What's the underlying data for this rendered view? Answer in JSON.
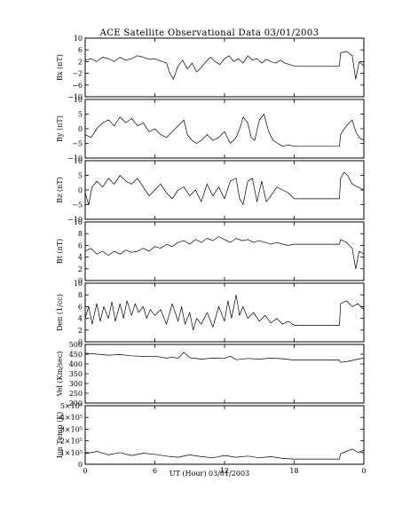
{
  "chart_data": {
    "type": "line",
    "title": "ACE Satellite Observational Data   03/01/2003",
    "xlabel": "UT (Hour)   03/01/2003",
    "x_ticks": [
      "0",
      "6",
      "12",
      "18",
      "0"
    ],
    "x_range_hours": [
      0,
      24
    ],
    "grid": false,
    "data_gap_hours": [
      18.0,
      21.9
    ],
    "panels": [
      {
        "name": "Bx",
        "ylabel": "Bx (nT)",
        "ylim": [
          -10,
          10
        ],
        "yticks": [
          "10",
          "6",
          "2",
          "−2",
          "−6",
          "−10"
        ],
        "ytick_values": [
          10,
          6,
          2,
          -2,
          -6,
          -10
        ],
        "points": [
          [
            0,
            2.5
          ],
          [
            0.5,
            3
          ],
          [
            1,
            2
          ],
          [
            1.5,
            3.5
          ],
          [
            2,
            3
          ],
          [
            2.5,
            2
          ],
          [
            3,
            3.5
          ],
          [
            3.5,
            2.5
          ],
          [
            4,
            3
          ],
          [
            4.5,
            4
          ],
          [
            5,
            3.5
          ],
          [
            5.5,
            2.8
          ],
          [
            6,
            3
          ],
          [
            6.5,
            2.2
          ],
          [
            7,
            1.5
          ],
          [
            7.3,
            -2
          ],
          [
            7.6,
            -4
          ],
          [
            8,
            0.5
          ],
          [
            8.4,
            2.5
          ],
          [
            8.8,
            -0.5
          ],
          [
            9.2,
            1.5
          ],
          [
            9.6,
            -1.5
          ],
          [
            10,
            0
          ],
          [
            10.4,
            2
          ],
          [
            10.8,
            3.5
          ],
          [
            11.2,
            2
          ],
          [
            11.6,
            1
          ],
          [
            12,
            3
          ],
          [
            12.4,
            4
          ],
          [
            12.8,
            2
          ],
          [
            13.2,
            3
          ],
          [
            13.6,
            1.5
          ],
          [
            14,
            4
          ],
          [
            14.4,
            2.5
          ],
          [
            14.8,
            3
          ],
          [
            15.2,
            1.5
          ],
          [
            15.6,
            2.8
          ],
          [
            16,
            2
          ],
          [
            16.4,
            1.5
          ],
          [
            16.8,
            2.5
          ],
          [
            17.2,
            1.5
          ],
          [
            17.6,
            1
          ],
          [
            18,
            0.5
          ],
          [
            21.9,
            0.5
          ],
          [
            22,
            5
          ],
          [
            22.5,
            5.5
          ],
          [
            23,
            4
          ],
          [
            23.3,
            -4
          ],
          [
            23.6,
            2
          ],
          [
            24,
            0.5
          ]
        ]
      },
      {
        "name": "By",
        "ylabel": "By (nT)",
        "ylim": [
          -10,
          10
        ],
        "yticks": [
          "10",
          "5",
          "0",
          "−5",
          "−10"
        ],
        "ytick_values": [
          10,
          5,
          0,
          -5,
          -10
        ],
        "points": [
          [
            0,
            -2
          ],
          [
            0.5,
            -3
          ],
          [
            1,
            0
          ],
          [
            1.5,
            2
          ],
          [
            2,
            3
          ],
          [
            2.5,
            1
          ],
          [
            3,
            4
          ],
          [
            3.5,
            2
          ],
          [
            4,
            3.5
          ],
          [
            4.5,
            1
          ],
          [
            5,
            2
          ],
          [
            5.5,
            -1
          ],
          [
            6,
            0
          ],
          [
            6.5,
            -2
          ],
          [
            7,
            -3
          ],
          [
            7.5,
            -1
          ],
          [
            8,
            1
          ],
          [
            8.5,
            3
          ],
          [
            8.8,
            -2
          ],
          [
            9.2,
            -4
          ],
          [
            9.6,
            -5
          ],
          [
            10,
            -4
          ],
          [
            10.5,
            -2
          ],
          [
            11,
            -4
          ],
          [
            11.5,
            -3
          ],
          [
            12,
            -1
          ],
          [
            12.5,
            -5
          ],
          [
            13,
            -3
          ],
          [
            13.4,
            1
          ],
          [
            13.6,
            4
          ],
          [
            14,
            2
          ],
          [
            14.3,
            -3
          ],
          [
            14.6,
            -4
          ],
          [
            15,
            3
          ],
          [
            15.4,
            5
          ],
          [
            15.8,
            -1
          ],
          [
            16.2,
            -4
          ],
          [
            16.6,
            -5
          ],
          [
            17,
            -6
          ],
          [
            17.5,
            -5.5
          ],
          [
            18,
            -6
          ],
          [
            21.9,
            -6
          ],
          [
            22,
            -2
          ],
          [
            22.5,
            1
          ],
          [
            23,
            3
          ],
          [
            23.3,
            -1
          ],
          [
            23.6,
            -3
          ],
          [
            24,
            -4
          ]
        ]
      },
      {
        "name": "Bz",
        "ylabel": "Bz (nT)",
        "ylim": [
          -10,
          10
        ],
        "yticks": [
          "10",
          "5",
          "0",
          "−5",
          "−10"
        ],
        "ytick_values": [
          10,
          5,
          0,
          -5,
          -10
        ],
        "points": [
          [
            0,
            -1
          ],
          [
            0.3,
            -5
          ],
          [
            0.6,
            1
          ],
          [
            1,
            3
          ],
          [
            1.5,
            1
          ],
          [
            2,
            4
          ],
          [
            2.5,
            2
          ],
          [
            3,
            5
          ],
          [
            3.5,
            3
          ],
          [
            4,
            2
          ],
          [
            4.5,
            4
          ],
          [
            5,
            1
          ],
          [
            5.5,
            -2
          ],
          [
            6,
            0
          ],
          [
            6.5,
            2
          ],
          [
            7,
            -1
          ],
          [
            7.5,
            -3
          ],
          [
            8,
            0
          ],
          [
            8.5,
            1
          ],
          [
            9,
            -2
          ],
          [
            9.5,
            0
          ],
          [
            10,
            -4
          ],
          [
            10.5,
            2
          ],
          [
            11,
            -2
          ],
          [
            11.5,
            1
          ],
          [
            12,
            -3
          ],
          [
            12.5,
            3
          ],
          [
            13,
            4
          ],
          [
            13.3,
            -3
          ],
          [
            13.6,
            -5
          ],
          [
            14,
            3
          ],
          [
            14.4,
            4
          ],
          [
            14.8,
            -4
          ],
          [
            15.2,
            3
          ],
          [
            15.6,
            -4
          ],
          [
            16,
            -2
          ],
          [
            16.5,
            1
          ],
          [
            17,
            0
          ],
          [
            17.5,
            -1
          ],
          [
            18,
            -3
          ],
          [
            21.9,
            -3
          ],
          [
            22,
            4
          ],
          [
            22.3,
            6
          ],
          [
            22.6,
            5
          ],
          [
            23,
            2
          ],
          [
            23.5,
            1
          ],
          [
            24,
            0
          ]
        ]
      },
      {
        "name": "Bt",
        "ylabel": "Bt (nT)",
        "ylim": [
          0,
          10
        ],
        "yticks": [
          "10",
          "8",
          "6",
          "4",
          "2",
          "0"
        ],
        "ytick_values": [
          10,
          8,
          6,
          4,
          2,
          0
        ],
        "points": [
          [
            0,
            5
          ],
          [
            0.5,
            5.5
          ],
          [
            1,
            4.5
          ],
          [
            1.5,
            5
          ],
          [
            2,
            4.3
          ],
          [
            2.5,
            5
          ],
          [
            3,
            4.5
          ],
          [
            3.5,
            5.2
          ],
          [
            4,
            4.8
          ],
          [
            4.5,
            5
          ],
          [
            5,
            5.5
          ],
          [
            5.5,
            5
          ],
          [
            6,
            5.8
          ],
          [
            6.5,
            5.5
          ],
          [
            7,
            6.2
          ],
          [
            7.5,
            5.8
          ],
          [
            8,
            6.5
          ],
          [
            8.5,
            6.8
          ],
          [
            9,
            6.2
          ],
          [
            9.5,
            7
          ],
          [
            10,
            6.5
          ],
          [
            10.5,
            7.2
          ],
          [
            11,
            6.8
          ],
          [
            11.5,
            7.5
          ],
          [
            12,
            7
          ],
          [
            12.5,
            6.5
          ],
          [
            13,
            7.2
          ],
          [
            13.5,
            6.8
          ],
          [
            14,
            7
          ],
          [
            14.5,
            6.5
          ],
          [
            15,
            6.8
          ],
          [
            15.5,
            6.5
          ],
          [
            16,
            6.2
          ],
          [
            16.5,
            6.5
          ],
          [
            17,
            6.2
          ],
          [
            17.5,
            6
          ],
          [
            18,
            6.2
          ],
          [
            21.9,
            6.2
          ],
          [
            22,
            7
          ],
          [
            22.5,
            6.5
          ],
          [
            23,
            5.5
          ],
          [
            23.3,
            2
          ],
          [
            23.6,
            5
          ],
          [
            24,
            4.5
          ]
        ]
      },
      {
        "name": "Den",
        "ylabel": "Den (1/cc)",
        "ylim": [
          0,
          10
        ],
        "yticks": [
          "10",
          "8",
          "6",
          "4",
          "2",
          "0"
        ],
        "ytick_values": [
          10,
          8,
          6,
          4,
          2,
          0
        ],
        "points": [
          [
            0,
            4
          ],
          [
            0.3,
            6
          ],
          [
            0.6,
            3
          ],
          [
            1,
            6.5
          ],
          [
            1.3,
            3.5
          ],
          [
            1.6,
            6
          ],
          [
            2,
            4
          ],
          [
            2.3,
            6.8
          ],
          [
            2.6,
            3.5
          ],
          [
            3,
            6.5
          ],
          [
            3.3,
            4
          ],
          [
            3.6,
            7
          ],
          [
            4,
            4.5
          ],
          [
            4.3,
            6.5
          ],
          [
            4.6,
            5
          ],
          [
            5,
            6
          ],
          [
            5.3,
            4
          ],
          [
            5.6,
            5.5
          ],
          [
            6,
            4.5
          ],
          [
            6.5,
            5.5
          ],
          [
            7,
            3
          ],
          [
            7.5,
            6.5
          ],
          [
            8,
            3.5
          ],
          [
            8.3,
            6
          ],
          [
            8.6,
            3
          ],
          [
            9,
            5
          ],
          [
            9.3,
            2
          ],
          [
            9.6,
            4
          ],
          [
            10,
            3
          ],
          [
            10.5,
            5
          ],
          [
            11,
            2.5
          ],
          [
            11.5,
            6
          ],
          [
            12,
            3.5
          ],
          [
            12.3,
            7
          ],
          [
            12.6,
            4
          ],
          [
            13,
            8
          ],
          [
            13.3,
            4.5
          ],
          [
            13.6,
            6
          ],
          [
            14,
            4
          ],
          [
            14.5,
            5
          ],
          [
            15,
            3.5
          ],
          [
            15.5,
            4.5
          ],
          [
            16,
            3.2
          ],
          [
            16.5,
            4
          ],
          [
            17,
            3
          ],
          [
            17.5,
            3.5
          ],
          [
            18,
            2.8
          ],
          [
            21.9,
            2.8
          ],
          [
            22,
            6.5
          ],
          [
            22.5,
            7
          ],
          [
            23,
            6
          ],
          [
            23.5,
            6.5
          ],
          [
            24,
            5.5
          ]
        ]
      },
      {
        "name": "Vel",
        "ylabel": "Vel (Km/sec)",
        "ylim": [
          200,
          500
        ],
        "yticks": [
          "500",
          "450",
          "400",
          "350",
          "300",
          "250",
          "200"
        ],
        "ytick_values": [
          500,
          450,
          400,
          350,
          300,
          250,
          200
        ],
        "points": [
          [
            0,
            455
          ],
          [
            1,
            450
          ],
          [
            2,
            445
          ],
          [
            3,
            448
          ],
          [
            4,
            442
          ],
          [
            5,
            438
          ],
          [
            6,
            440
          ],
          [
            7,
            430
          ],
          [
            7.5,
            435
          ],
          [
            8,
            428
          ],
          [
            8.5,
            460
          ],
          [
            9,
            432
          ],
          [
            10,
            425
          ],
          [
            11,
            430
          ],
          [
            12,
            428
          ],
          [
            12.5,
            440
          ],
          [
            13,
            422
          ],
          [
            14,
            428
          ],
          [
            15,
            425
          ],
          [
            16,
            430
          ],
          [
            17,
            427
          ],
          [
            18,
            420
          ],
          [
            21.9,
            420
          ],
          [
            22,
            408
          ],
          [
            22.5,
            412
          ],
          [
            23,
            418
          ],
          [
            23.5,
            425
          ],
          [
            24,
            430
          ]
        ]
      },
      {
        "name": "Ion Temp",
        "ylabel": "Ion Temp (K)",
        "ylim": [
          0,
          500000
        ],
        "yticks": [
          "5×10⁵",
          "4×10⁵",
          "3×10⁵",
          "2×10⁵",
          "1×10⁵",
          "0"
        ],
        "ytick_values": [
          500000,
          400000,
          300000,
          200000,
          100000,
          0
        ],
        "points": [
          [
            0,
            90000
          ],
          [
            1,
            110000
          ],
          [
            2,
            80000
          ],
          [
            3,
            100000
          ],
          [
            4,
            75000
          ],
          [
            5,
            95000
          ],
          [
            6,
            85000
          ],
          [
            7,
            70000
          ],
          [
            8,
            60000
          ],
          [
            9,
            80000
          ],
          [
            10,
            65000
          ],
          [
            11,
            55000
          ],
          [
            12,
            75000
          ],
          [
            13,
            60000
          ],
          [
            14,
            70000
          ],
          [
            15,
            55000
          ],
          [
            16,
            65000
          ],
          [
            17,
            50000
          ],
          [
            18,
            45000
          ],
          [
            21.9,
            45000
          ],
          [
            22,
            90000
          ],
          [
            22.5,
            110000
          ],
          [
            23,
            130000
          ],
          [
            23.5,
            100000
          ],
          [
            24,
            120000
          ]
        ]
      }
    ]
  }
}
